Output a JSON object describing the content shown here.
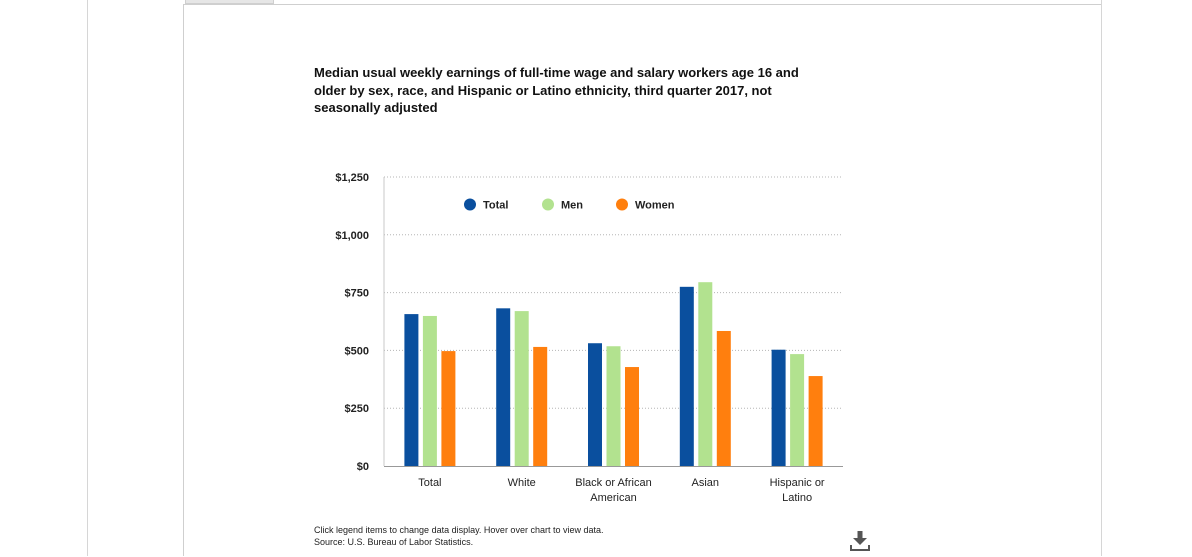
{
  "chart_data": {
    "type": "bar",
    "title": "Median usual weekly earnings of full-time wage and salary workers age 16 and older by sex, race, and Hispanic or Latino ethnicity, third quarter 2017, not seasonally adjusted",
    "categories": [
      [
        "Total"
      ],
      [
        "White"
      ],
      [
        "Black or African",
        "American"
      ],
      [
        "Asian"
      ],
      [
        "Hispanic or",
        "Latino"
      ]
    ],
    "series": [
      {
        "name": "Total",
        "color": "#0a4f9e",
        "values": [
          657,
          682,
          531,
          775,
          503
        ]
      },
      {
        "name": "Men",
        "color": "#b2e28f",
        "values": [
          649,
          670,
          518,
          795,
          484
        ]
      },
      {
        "name": "Women",
        "color": "#ff7f0e",
        "values": [
          497,
          515,
          428,
          584,
          389
        ]
      }
    ],
    "ylim": [
      0,
      1250
    ],
    "yticks": [
      0,
      250,
      500,
      750,
      1000,
      1250
    ],
    "ytick_labels": [
      "$0",
      "$250",
      "$500",
      "$750",
      "$1,000",
      "$1,250"
    ],
    "grid": true,
    "legend_position": "top-center"
  },
  "notes": {
    "line1": "Click legend items to change data display. Hover over chart to view data.",
    "line2": "Source: U.S. Bureau of Labor Statistics."
  },
  "icons": {
    "download": "download-icon"
  }
}
